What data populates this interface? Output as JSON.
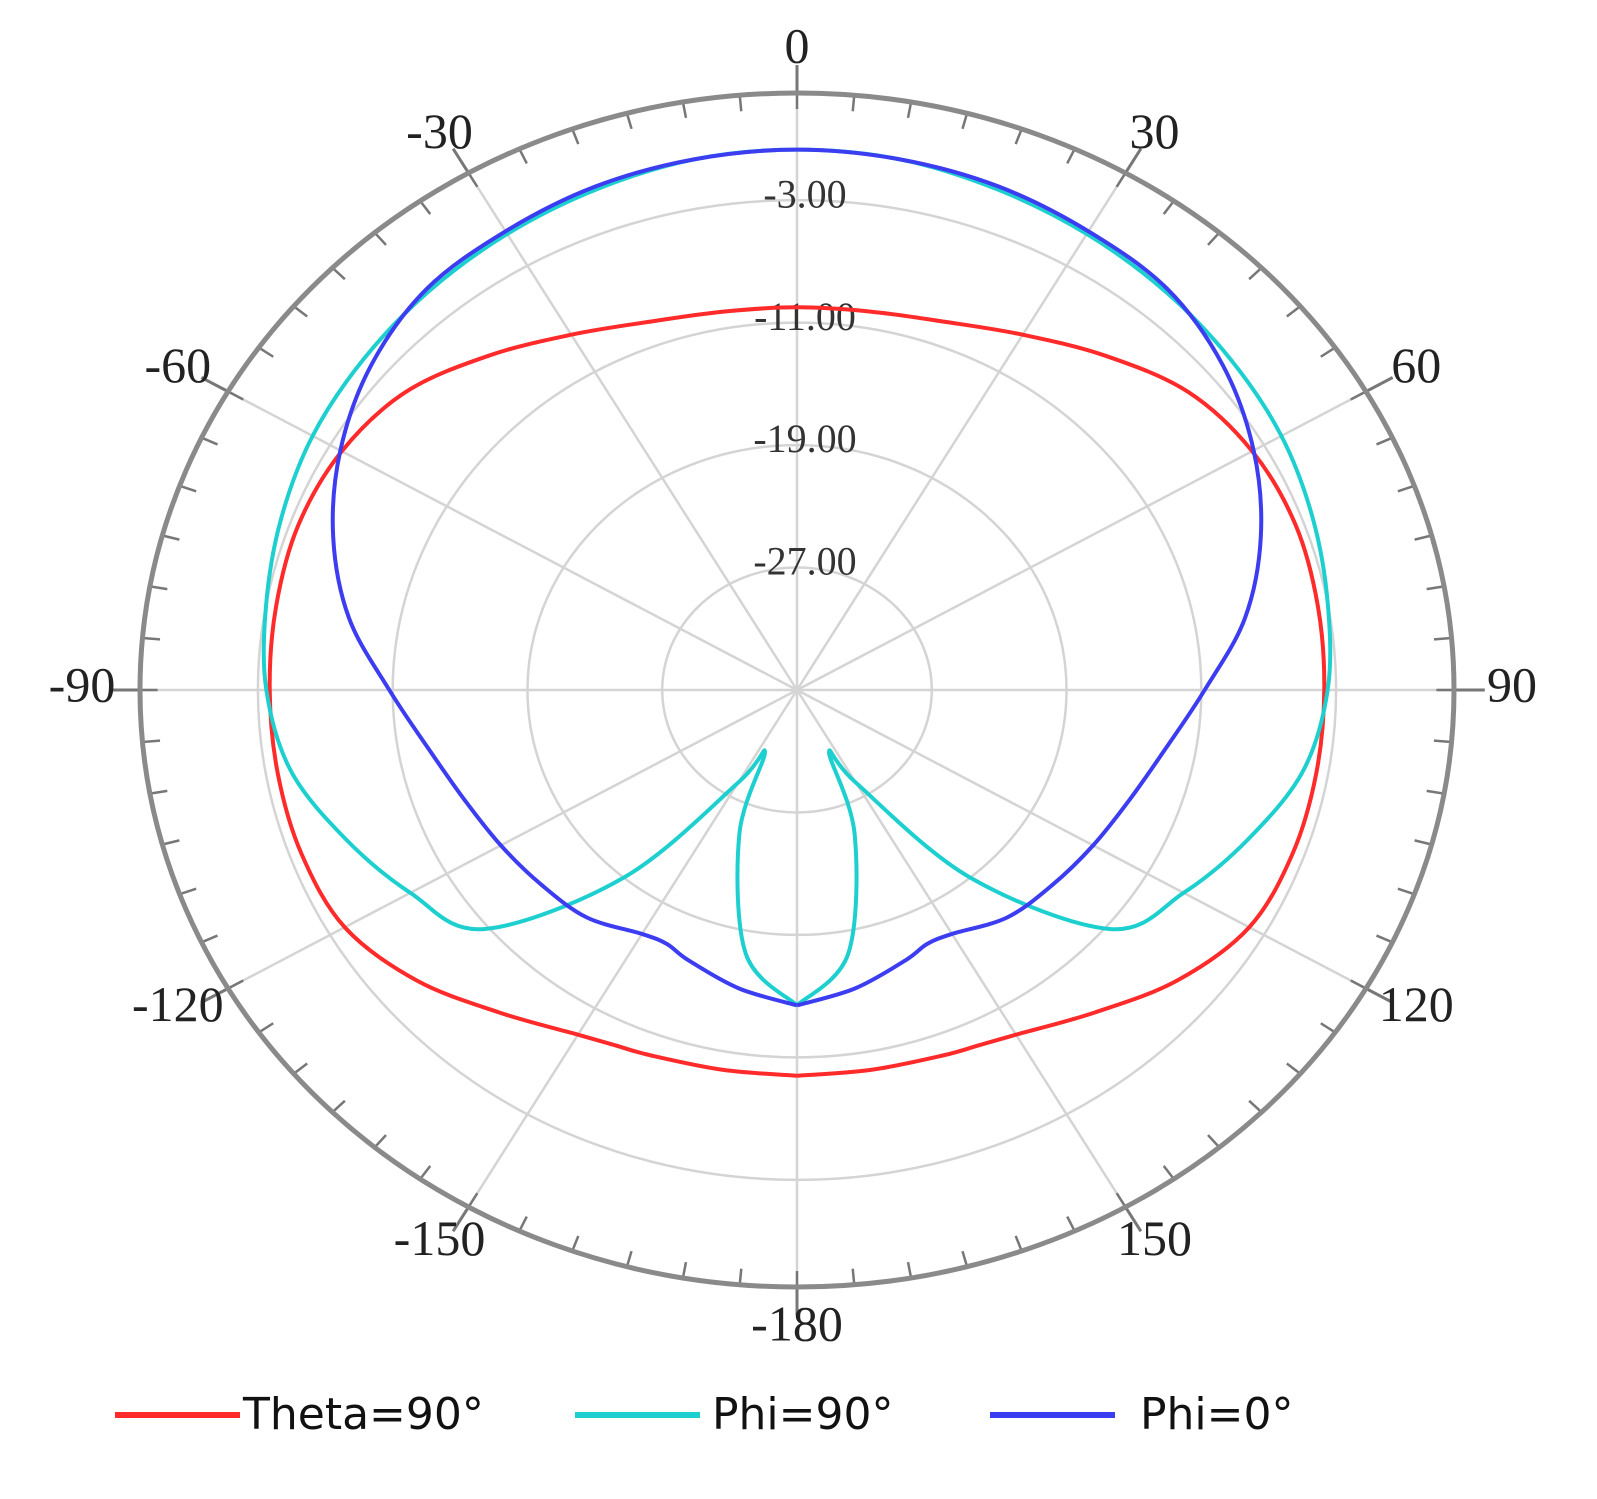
{
  "chart_data": {
    "type": "polar",
    "x": [
      -180,
      -170,
      -160,
      -155,
      -150,
      -140,
      -130,
      -120,
      -110,
      -100,
      -90,
      -80,
      -70,
      -60,
      -50,
      -40,
      -30,
      -20,
      -10,
      0,
      10,
      20,
      30,
      40,
      50,
      60,
      70,
      80,
      90,
      100,
      110,
      120,
      130,
      140,
      150,
      155,
      160,
      170,
      180
    ],
    "series": [
      {
        "name": "Theta=90°",
        "color": "#ff2a2a",
        "values": [
          -9.8,
          -9.8,
          -9.6,
          -9.4,
          -9,
          -7.5,
          -5.5,
          -4,
          -3.7,
          -3.7,
          -3.7,
          -3.6,
          -3.5,
          -3.8,
          -4.7,
          -6.5,
          -8.2,
          -9.4,
          -9.9,
          -10,
          -9.9,
          -9.4,
          -8.2,
          -6.5,
          -4.7,
          -3.8,
          -3.5,
          -3.6,
          -3.7,
          -3.7,
          -3.7,
          -4,
          -5.5,
          -7.5,
          -9,
          -9.4,
          -9.6,
          -9.8,
          -9.8
        ]
      },
      {
        "name": "Phi=90°",
        "color": "#1ecfcf",
        "values": [
          -14.4,
          -17.5,
          -25,
          -30.5,
          -28,
          -19,
          -10.7,
          -8.5,
          -6.5,
          -4.5,
          -3.5,
          -3,
          -2.4,
          -1.8,
          -1.4,
          -1,
          -0.6,
          -0.2,
          0.2,
          0.3,
          0.2,
          -0.2,
          -0.6,
          -1,
          -1.4,
          -1.8,
          -2.4,
          -3,
          -3.5,
          -4.5,
          -6.5,
          -8.5,
          -10.7,
          -19,
          -28,
          -30.5,
          -25,
          -17.5,
          -14.4
        ]
      },
      {
        "name": "Phi=0°",
        "color": "#3c3cf0",
        "values": [
          -14.4,
          -15.2,
          -16.2,
          -16.7,
          -16.6,
          -15.6,
          -15.2,
          -14.7,
          -14,
          -12.8,
          -10.8,
          -8,
          -5.7,
          -3.7,
          -2,
          -0.8,
          -0.4,
          0,
          0.2,
          0.3,
          0.2,
          0,
          -0.4,
          -0.8,
          -2,
          -3.7,
          -5.7,
          -8,
          -10.8,
          -12.8,
          -14,
          -14.7,
          -15.2,
          -15.6,
          -16.6,
          -16.7,
          -16.2,
          -15.2,
          -14.4
        ]
      }
    ],
    "rlim": [
      -35,
      4
    ],
    "rticks": [
      {
        "value": -27,
        "label": "-27.00"
      },
      {
        "value": -19,
        "label": "-19.00"
      },
      {
        "value": -11,
        "label": "-11.00"
      },
      {
        "value": -3,
        "label": "-3.00"
      }
    ],
    "thetaticks": [
      0,
      30,
      60,
      90,
      120,
      150,
      -180,
      -150,
      -120,
      -90,
      -60,
      -30
    ],
    "theta_minor_step": 5,
    "grid": true,
    "legend": "bottom"
  }
}
